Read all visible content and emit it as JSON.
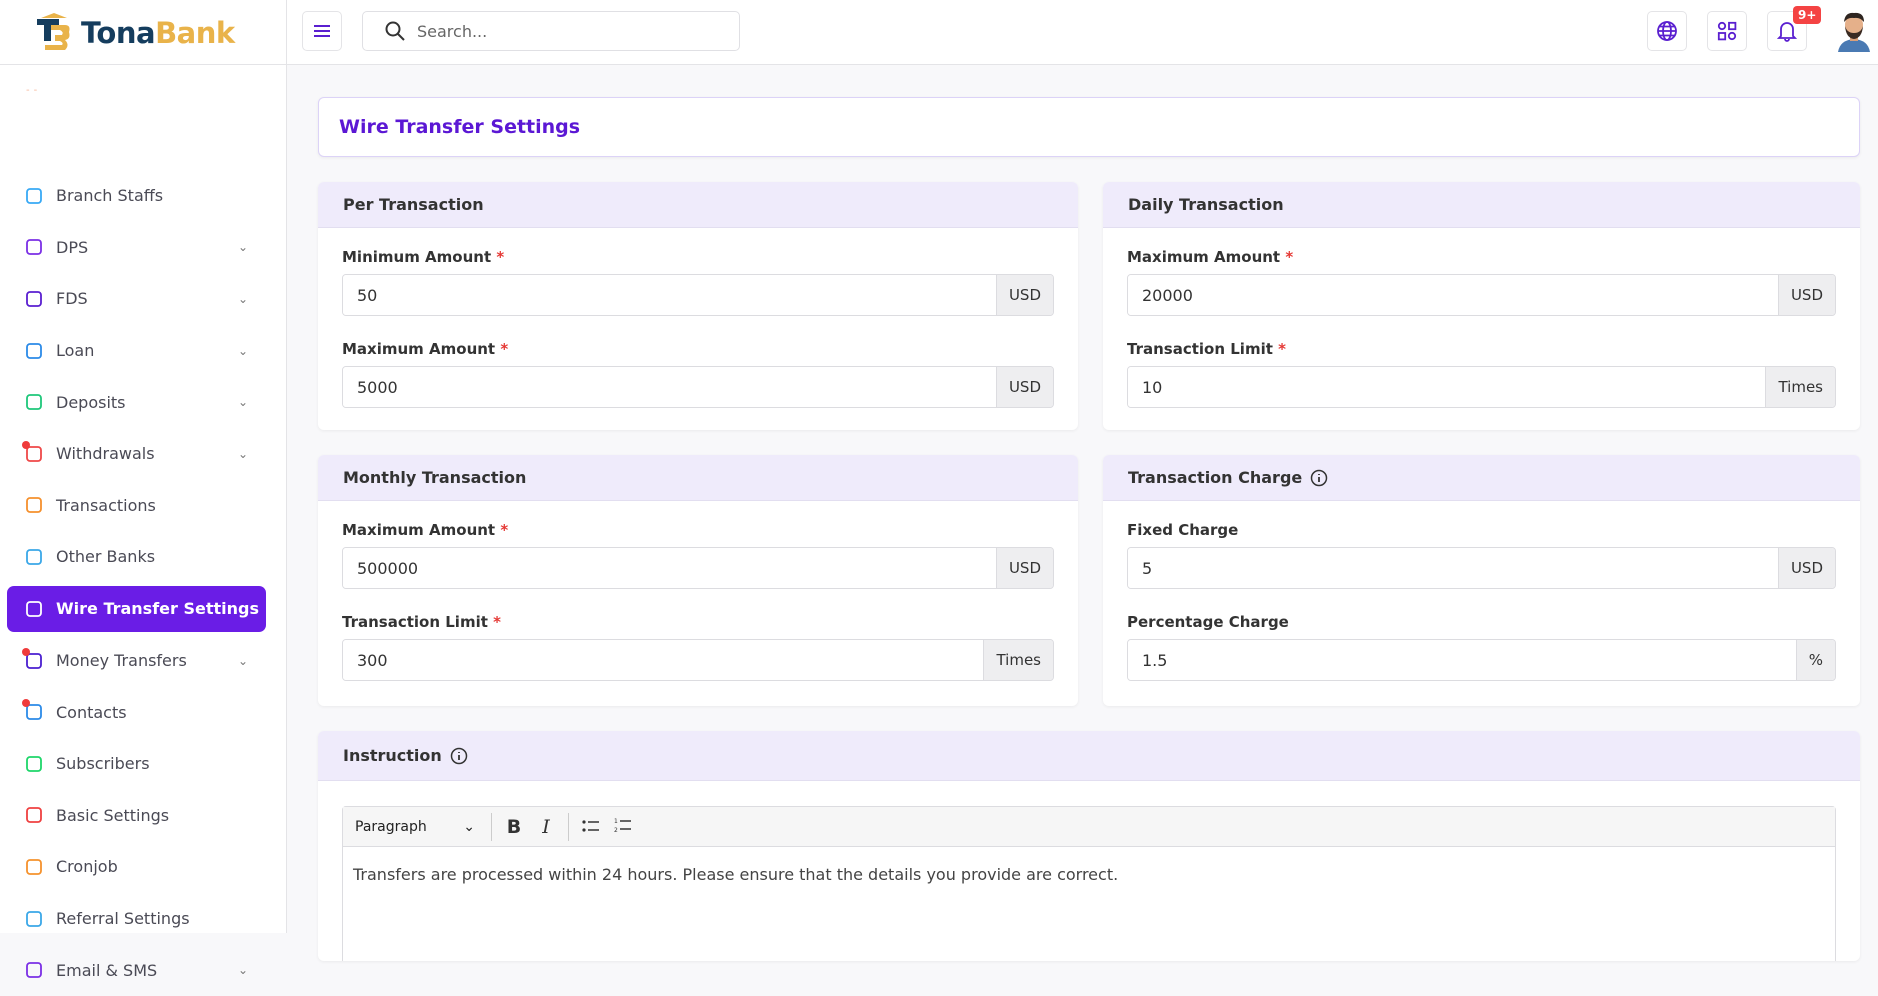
{
  "brand": {
    "name_part1": "Tona",
    "name_part2": "Bank"
  },
  "header": {
    "search_placeholder": "Search...",
    "notification_badge": "9+",
    "icons": [
      "menu-icon",
      "search-icon",
      "globe-icon",
      "apps-icon",
      "bell-icon"
    ]
  },
  "sidebar": {
    "items": [
      {
        "label": "Branch Staffs",
        "icon": "users-icon",
        "color": "#38a9f5",
        "chevron": false,
        "dot": false
      },
      {
        "label": "DPS",
        "icon": "money-bag-icon",
        "color": "#7b2fe5",
        "chevron": true,
        "dot": false
      },
      {
        "label": "FDS",
        "icon": "receipt-icon",
        "color": "#5a1fd0",
        "chevron": true,
        "dot": false
      },
      {
        "label": "Loan",
        "icon": "cash-icon",
        "color": "#2b8ae8",
        "chevron": true,
        "dot": false
      },
      {
        "label": "Deposits",
        "icon": "wallet-icon",
        "color": "#1ec77a",
        "chevron": true,
        "dot": false
      },
      {
        "label": "Withdrawals",
        "icon": "cash-out-icon",
        "color": "#ef4848",
        "chevron": true,
        "dot": true
      },
      {
        "label": "Transactions",
        "icon": "exchange-icon",
        "color": "#f5902d",
        "chevron": false,
        "dot": false
      },
      {
        "label": "Other Banks",
        "icon": "bank-icon",
        "color": "#3aa7e8",
        "chevron": false,
        "dot": false
      },
      {
        "label": "Wire Transfer Settings",
        "icon": "globe-icon",
        "color": "#ffffff",
        "chevron": false,
        "dot": false,
        "active": true
      },
      {
        "label": "Money Transfers",
        "icon": "arrows-icon",
        "color": "#4a1fd0",
        "chevron": true,
        "dot": true
      },
      {
        "label": "Contacts",
        "icon": "contact-card-icon",
        "color": "#2b8ae8",
        "chevron": false,
        "dot": true
      },
      {
        "label": "Subscribers",
        "icon": "message-plus-icon",
        "color": "#1ed66a",
        "chevron": false,
        "dot": false
      },
      {
        "label": "Basic Settings",
        "icon": "gear-icon",
        "color": "#ef4040",
        "chevron": false,
        "dot": false
      },
      {
        "label": "Cronjob",
        "icon": "clock-icon",
        "color": "#f5922d",
        "chevron": false,
        "dot": false
      },
      {
        "label": "Referral Settings",
        "icon": "network-icon",
        "color": "#3aa7e8",
        "chevron": false,
        "dot": false
      },
      {
        "label": "Email & SMS",
        "icon": "mail-icon",
        "color": "#7b2fe5",
        "chevron": true,
        "dot": false
      }
    ]
  },
  "page": {
    "title": "Wire Transfer Settings"
  },
  "per_transaction": {
    "title": "Per Transaction",
    "min_label": "Minimum Amount",
    "min_value": "50",
    "min_unit": "USD",
    "max_label": "Maximum Amount",
    "max_value": "5000",
    "max_unit": "USD"
  },
  "daily_transaction": {
    "title": "Daily Transaction",
    "max_label": "Maximum Amount",
    "max_value": "20000",
    "max_unit": "USD",
    "limit_label": "Transaction Limit",
    "limit_value": "10",
    "limit_unit": "Times"
  },
  "monthly_transaction": {
    "title": "Monthly Transaction",
    "max_label": "Maximum Amount",
    "max_value": "500000",
    "max_unit": "USD",
    "limit_label": "Transaction Limit",
    "limit_value": "300",
    "limit_unit": "Times"
  },
  "transaction_charge": {
    "title": "Transaction Charge",
    "fixed_label": "Fixed Charge",
    "fixed_value": "5",
    "fixed_unit": "USD",
    "percent_label": "Percentage Charge",
    "percent_value": "1.5",
    "percent_unit": "%"
  },
  "instruction": {
    "title": "Instruction",
    "format": "Paragraph",
    "bold": "B",
    "italic": "I",
    "content": "Transfers are processed within 24 hours. Please ensure that the details you provide are correct."
  },
  "required_mark": "*"
}
